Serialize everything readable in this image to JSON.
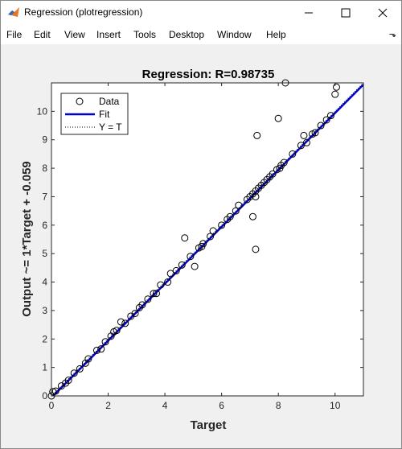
{
  "window": {
    "title": "Regression (plotregression)",
    "icon": "matlab-icon",
    "controls": [
      "minimize-icon",
      "maximize-icon",
      "close-icon"
    ]
  },
  "menu": [
    "File",
    "Edit",
    "View",
    "Insert",
    "Tools",
    "Desktop",
    "Window",
    "Help"
  ],
  "chart_data": {
    "type": "scatter",
    "title": "Regression: R=0.98735",
    "xlabel": "Target",
    "ylabel": "Output ~= 1*Target + -0.059",
    "xlim": [
      0,
      11
    ],
    "ylim": [
      0,
      11
    ],
    "xticks": [
      0,
      2,
      4,
      6,
      8,
      10
    ],
    "yticks": [
      0,
      1,
      2,
      3,
      4,
      5,
      6,
      7,
      8,
      9,
      10
    ],
    "grid": false,
    "legend_position": "top-left",
    "legend": [
      {
        "label": "Data",
        "style": "circle"
      },
      {
        "label": "Fit",
        "style": "solid-blue"
      },
      {
        "label": "Y = T",
        "style": "dotted"
      }
    ],
    "fit": {
      "slope": 1,
      "intercept": -0.059,
      "color": "#0000cc"
    },
    "identity_line": {
      "color": "#000000"
    },
    "points": [
      [
        0.0,
        0.0
      ],
      [
        0.05,
        0.15
      ],
      [
        0.15,
        0.17
      ],
      [
        0.35,
        0.35
      ],
      [
        0.5,
        0.45
      ],
      [
        0.6,
        0.55
      ],
      [
        0.8,
        0.8
      ],
      [
        1.0,
        0.95
      ],
      [
        1.2,
        1.15
      ],
      [
        1.3,
        1.3
      ],
      [
        1.6,
        1.6
      ],
      [
        1.75,
        1.65
      ],
      [
        1.9,
        1.9
      ],
      [
        2.1,
        2.1
      ],
      [
        2.3,
        2.3
      ],
      [
        2.45,
        2.6
      ],
      [
        2.6,
        2.55
      ],
      [
        2.8,
        2.8
      ],
      [
        2.95,
        2.9
      ],
      [
        3.1,
        3.1
      ],
      [
        3.2,
        3.2
      ],
      [
        3.4,
        3.4
      ],
      [
        3.6,
        3.6
      ],
      [
        3.7,
        3.6
      ],
      [
        3.85,
        3.9
      ],
      [
        4.1,
        4.0
      ],
      [
        4.2,
        4.3
      ],
      [
        4.4,
        4.4
      ],
      [
        4.6,
        4.6
      ],
      [
        4.7,
        5.55
      ],
      [
        4.9,
        4.9
      ],
      [
        5.05,
        4.55
      ],
      [
        5.2,
        5.2
      ],
      [
        5.35,
        5.35
      ],
      [
        5.6,
        5.6
      ],
      [
        5.7,
        5.8
      ],
      [
        6.0,
        6.0
      ],
      [
        6.3,
        6.3
      ],
      [
        6.5,
        6.5
      ],
      [
        6.6,
        6.7
      ],
      [
        6.9,
        6.9
      ],
      [
        7.0,
        7.0
      ],
      [
        7.1,
        6.3
      ],
      [
        7.1,
        7.1
      ],
      [
        7.2,
        5.15
      ],
      [
        7.2,
        7.2
      ],
      [
        7.25,
        9.15
      ],
      [
        7.3,
        7.3
      ],
      [
        7.4,
        7.4
      ],
      [
        7.5,
        7.5
      ],
      [
        7.6,
        7.6
      ],
      [
        7.7,
        7.7
      ],
      [
        7.8,
        7.8
      ],
      [
        7.95,
        7.95
      ],
      [
        8.05,
        8.0
      ],
      [
        8.0,
        9.75
      ],
      [
        8.1,
        8.1
      ],
      [
        8.2,
        8.2
      ],
      [
        8.25,
        11.0
      ],
      [
        8.5,
        8.5
      ],
      [
        8.8,
        8.8
      ],
      [
        8.9,
        9.15
      ],
      [
        9.0,
        8.9
      ],
      [
        9.2,
        9.2
      ],
      [
        9.3,
        9.25
      ],
      [
        9.5,
        9.5
      ],
      [
        9.7,
        9.7
      ],
      [
        9.85,
        9.85
      ],
      [
        10.0,
        10.6
      ],
      [
        10.05,
        10.85
      ],
      [
        7.2,
        7.0
      ],
      [
        6.2,
        6.2
      ],
      [
        5.3,
        5.25
      ],
      [
        2.2,
        2.25
      ]
    ]
  }
}
